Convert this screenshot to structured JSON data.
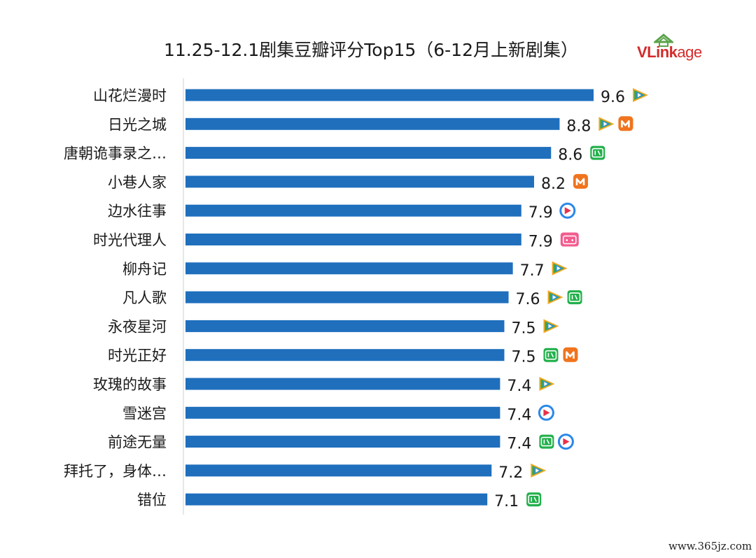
{
  "chart_data": {
    "type": "bar",
    "orientation": "horizontal",
    "title": "11.25-12.1剧集豆瓣评分Top15（6-12月上新剧集）",
    "categories": [
      "山花烂漫时",
      "日光之城",
      "唐朝诡事录之…",
      "小巷人家",
      "边水往事",
      "时光代理人",
      "柳舟记",
      "凡人歌",
      "永夜星河",
      "时光正好",
      "玫瑰的故事",
      "雪迷宫",
      "前途无量",
      "拜托了，身体…",
      "错位"
    ],
    "values": [
      9.6,
      8.8,
      8.6,
      8.2,
      7.9,
      7.9,
      7.7,
      7.6,
      7.5,
      7.5,
      7.4,
      7.4,
      7.4,
      7.2,
      7.1
    ],
    "value_labels": [
      "9.6",
      "8.8",
      "8.6",
      "8.2",
      "7.9",
      "7.9",
      "7.7",
      "7.6",
      "7.5",
      "7.5",
      "7.4",
      "7.4",
      "7.4",
      "7.2",
      "7.1"
    ],
    "platforms": [
      [
        "tencent"
      ],
      [
        "tencent",
        "mgtv"
      ],
      [
        "iqiyi"
      ],
      [
        "mgtv"
      ],
      [
        "youku"
      ],
      [
        "bilibili"
      ],
      [
        "tencent"
      ],
      [
        "tencent",
        "iqiyi"
      ],
      [
        "tencent"
      ],
      [
        "iqiyi",
        "mgtv"
      ],
      [
        "tencent"
      ],
      [
        "youku"
      ],
      [
        "iqiyi",
        "youku"
      ],
      [
        "tencent"
      ],
      [
        "iqiyi"
      ]
    ],
    "xlim": [
      0,
      9.6
    ],
    "grid": false,
    "legend": "none",
    "bar_color": "#1f6fbd"
  },
  "brand": {
    "name_bold": "VLink",
    "name_light": "age",
    "color": "#d42a2a",
    "mark_color": "#5aa34a"
  },
  "watermark": "www.365jz.com",
  "platform_colors": {
    "tencent": "#2e8fd6",
    "iqiyi": "#22b04b",
    "mgtv": "#f0741e",
    "youku": "#2a88e8",
    "bilibili": "#f25d8e"
  }
}
